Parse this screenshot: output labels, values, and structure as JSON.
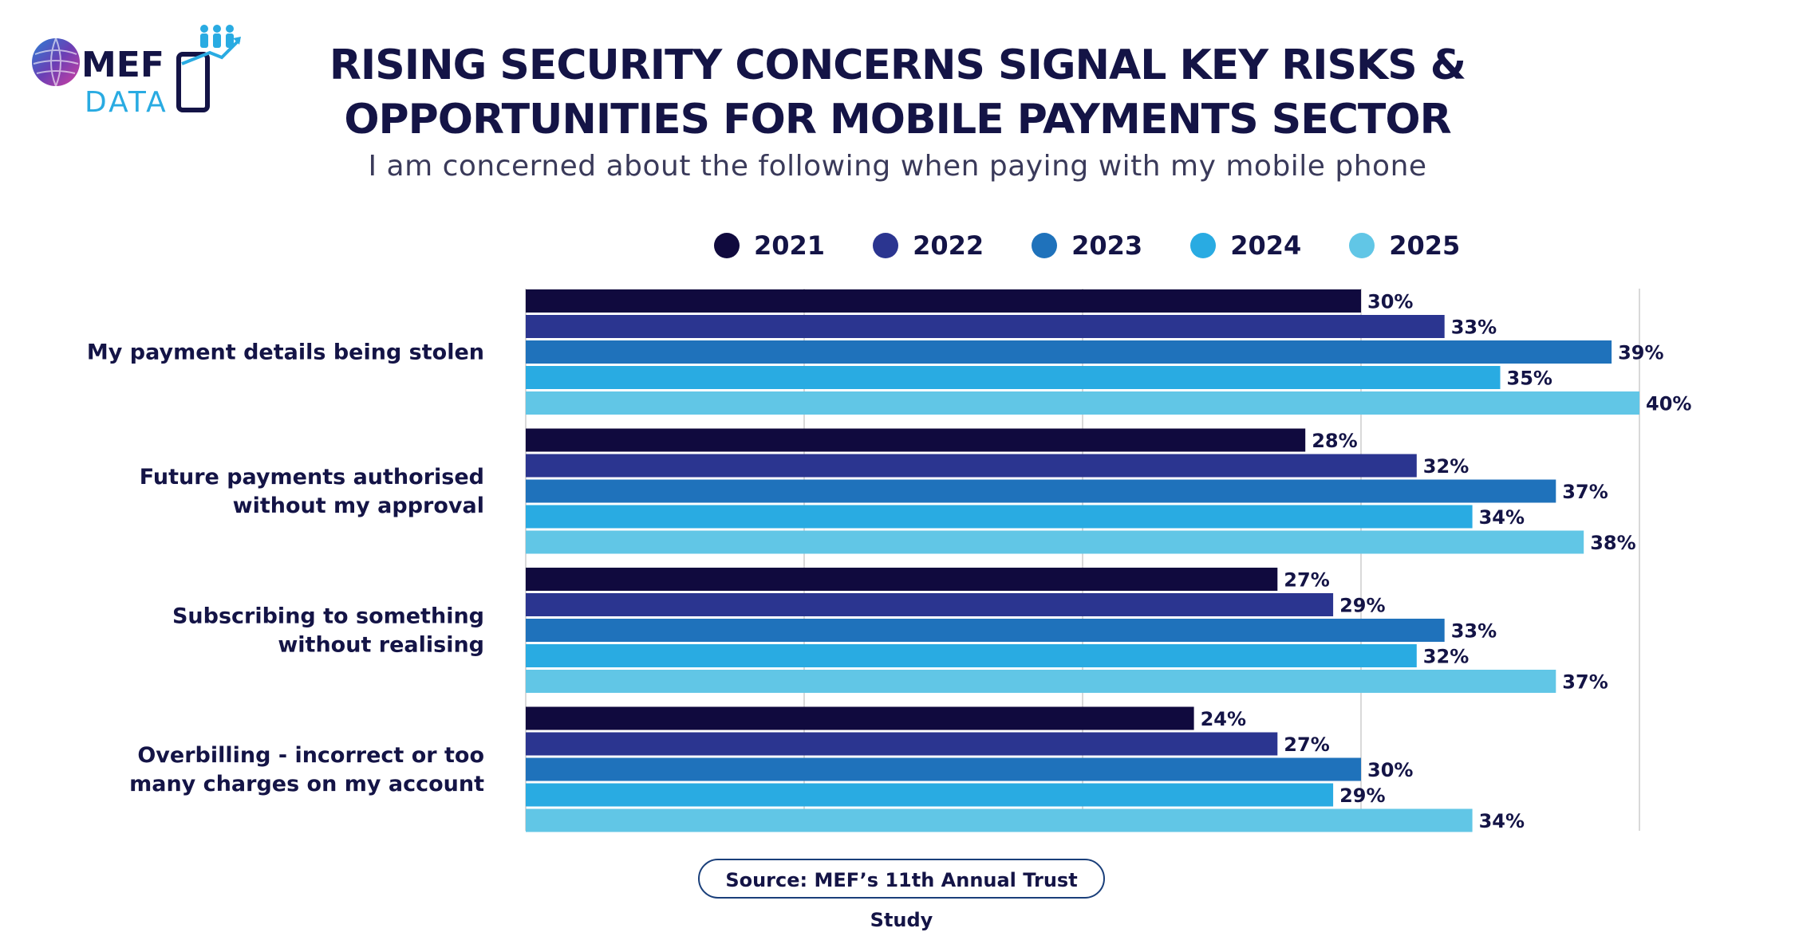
{
  "logo": {
    "top_text": "MEF",
    "bottom_text": "DATA"
  },
  "title_line1": "RISING SECURITY CONCERNS SIGNAL KEY RISKS &",
  "title_line2": "OPPORTUNITIES FOR MOBILE PAYMENTS SECTOR",
  "subtitle": "I am concerned about the following when paying with my mobile phone",
  "source": "Source: MEF’s 11th Annual Trust Study",
  "colors": {
    "2021": "#100a3e",
    "2022": "#2b3590",
    "2023": "#1f72bb",
    "2024": "#29abe2",
    "2025": "#61c6e6",
    "grid": "#d9d9d9",
    "text": "#141446"
  },
  "chart_data": {
    "type": "bar",
    "orientation": "horizontal",
    "categories": [
      [
        "My payment details being stolen"
      ],
      [
        "Future payments authorised",
        "without my approval"
      ],
      [
        "Subscribing to something",
        "without realising"
      ],
      [
        "Overbilling - incorrect or too",
        "many charges on my account"
      ]
    ],
    "series": [
      {
        "name": "2021",
        "values": [
          30,
          28,
          27,
          24
        ]
      },
      {
        "name": "2022",
        "values": [
          33,
          32,
          29,
          27
        ]
      },
      {
        "name": "2023",
        "values": [
          39,
          37,
          33,
          30
        ]
      },
      {
        "name": "2024",
        "values": [
          35,
          34,
          32,
          29
        ]
      },
      {
        "name": "2025",
        "values": [
          40,
          38,
          37,
          34
        ]
      }
    ],
    "value_suffix": "%",
    "xlim": [
      0,
      40
    ],
    "grid": true,
    "legend_position": "top"
  }
}
